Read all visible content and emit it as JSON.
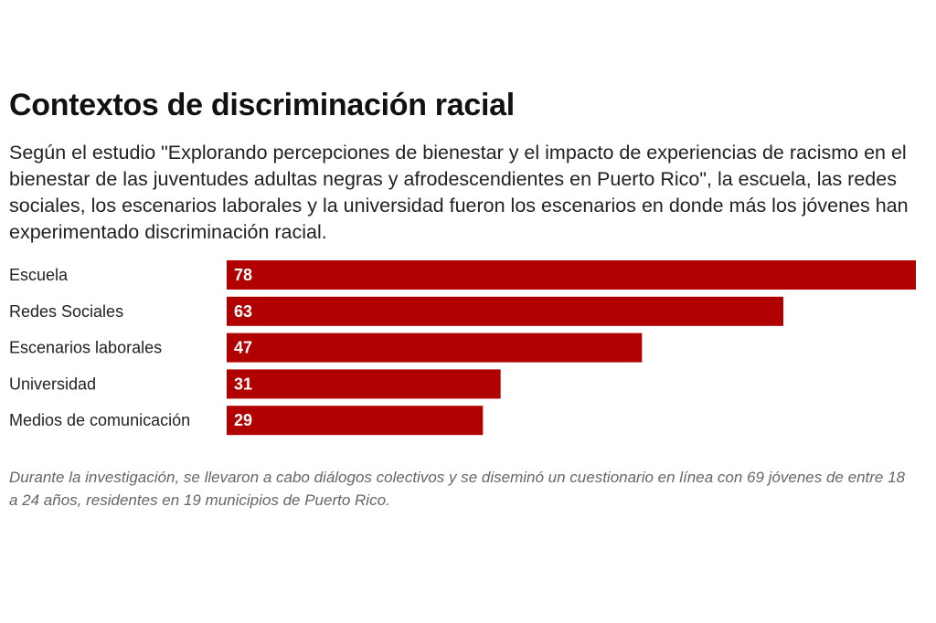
{
  "title": "Contextos de discriminación racial",
  "subtitle": "Según el estudio \"Explorando percepciones de bienestar y el impacto de experiencias de racismo en el bienestar de las juventudes adultas negras y afrodescendientes en Puerto Rico\", la escuela, las redes sociales, los escenarios laborales y la universidad fueron los escenarios en donde más los jóvenes han experimentado discriminación racial.",
  "note": "Durante la investigación, se llevaron a cabo diálogos colectivos y se diseminó un cuestionario en línea con 69 jóvenes de entre 18 a 24 años, residentes en 19 municipios de Puerto Rico.",
  "colors": {
    "bar": "#b00000",
    "bar_label": "#ffffff",
    "category_label": "#222222"
  },
  "chart_data": {
    "type": "bar",
    "orientation": "horizontal",
    "categories": [
      "Escuela",
      "Redes Sociales",
      "Escenarios laborales",
      "Universidad",
      "Medios de comunicación"
    ],
    "values": [
      78,
      63,
      47,
      31,
      29
    ],
    "xlim": [
      0,
      78
    ],
    "grid": false,
    "legend": "none",
    "data_labels": "inside-start"
  }
}
